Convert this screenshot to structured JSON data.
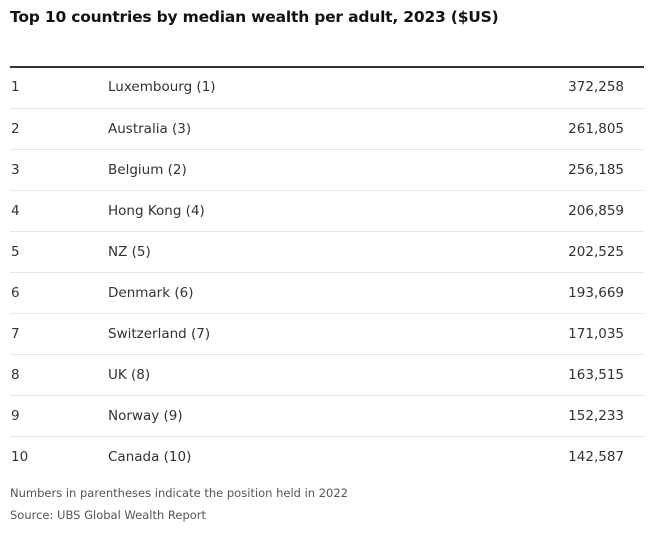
{
  "chart_data": {
    "type": "table",
    "title": "Top 10 countries by median wealth per adult, 2023 ($US)",
    "rows": [
      {
        "rank": "1",
        "country": "Luxembourg (1)",
        "value": "372,258"
      },
      {
        "rank": "2",
        "country": "Australia (3)",
        "value": "261,805"
      },
      {
        "rank": "3",
        "country": "Belgium (2)",
        "value": "256,185"
      },
      {
        "rank": "4",
        "country": "Hong Kong (4)",
        "value": "206,859"
      },
      {
        "rank": "5",
        "country": "NZ (5)",
        "value": "202,525"
      },
      {
        "rank": "6",
        "country": "Denmark (6)",
        "value": "193,669"
      },
      {
        "rank": "7",
        "country": "Switzerland (7)",
        "value": "171,035"
      },
      {
        "rank": "8",
        "country": "UK (8)",
        "value": "163,515"
      },
      {
        "rank": "9",
        "country": "Norway (9)",
        "value": "152,233"
      },
      {
        "rank": "10",
        "country": "Canada (10)",
        "value": "142,587"
      }
    ],
    "note": "Numbers in parentheses indicate the position held in 2022",
    "source": "Source: UBS Global Wealth Report"
  }
}
